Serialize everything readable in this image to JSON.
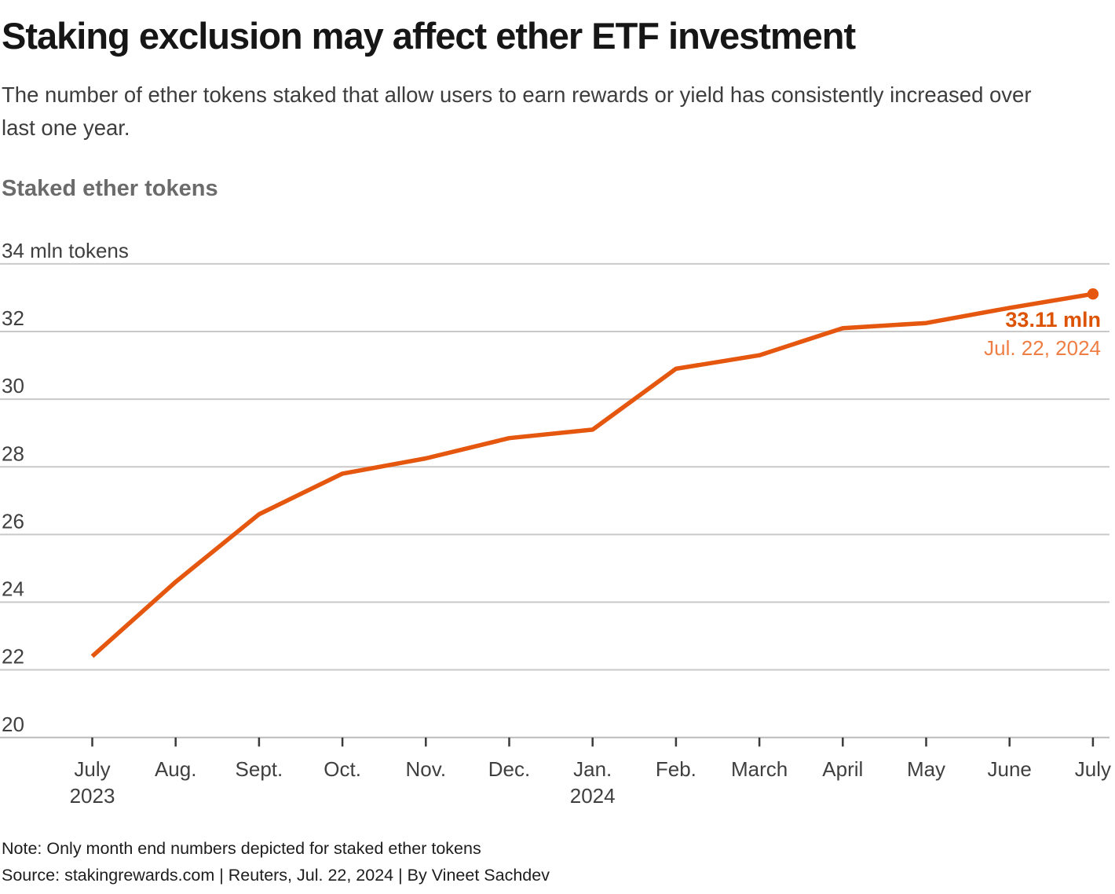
{
  "header": {
    "title": "Staking exclusion may affect ether ETF investment",
    "subtitle_line1": "The number of ether tokens staked that allow users to earn rewards or yield has consistently increased over",
    "subtitle_line2": "last one year."
  },
  "chart_data": {
    "type": "line",
    "title": "Staked ether tokens",
    "x_ticks": [
      {
        "label": "July",
        "sub": "2023"
      },
      {
        "label": "Aug."
      },
      {
        "label": "Sept."
      },
      {
        "label": "Oct."
      },
      {
        "label": "Nov."
      },
      {
        "label": "Dec."
      },
      {
        "label": "Jan.",
        "sub": "2024"
      },
      {
        "label": "Feb."
      },
      {
        "label": "March"
      },
      {
        "label": "April"
      },
      {
        "label": "May"
      },
      {
        "label": "June"
      },
      {
        "label": "July"
      }
    ],
    "values": [
      22.4,
      24.6,
      26.6,
      27.8,
      28.25,
      28.85,
      29.1,
      30.9,
      31.3,
      32.1,
      32.25,
      32.7,
      33.11
    ],
    "ylim": [
      20,
      34
    ],
    "ytick_step": 2,
    "ylabel_top": "34 mln tokens",
    "grid": true,
    "legend_position": "none",
    "annotation": {
      "value_label": "33.11 mln",
      "date_label": "Jul. 22, 2024"
    },
    "colors": {
      "line": "#e5560e",
      "annotation_value": "#dd5306",
      "annotation_date": "#ee7e44",
      "grid": "#c9c9c9",
      "axis_line": "#bcbcbc",
      "tick": "#3a3a3a",
      "axis_text": "#3f3f3f"
    }
  },
  "footer": {
    "note": "Note: Only month end numbers depicted for staked ether tokens",
    "source": "Source: stakingrewards.com | Reuters, Jul. 22, 2024 | By Vineet Sachdev"
  }
}
